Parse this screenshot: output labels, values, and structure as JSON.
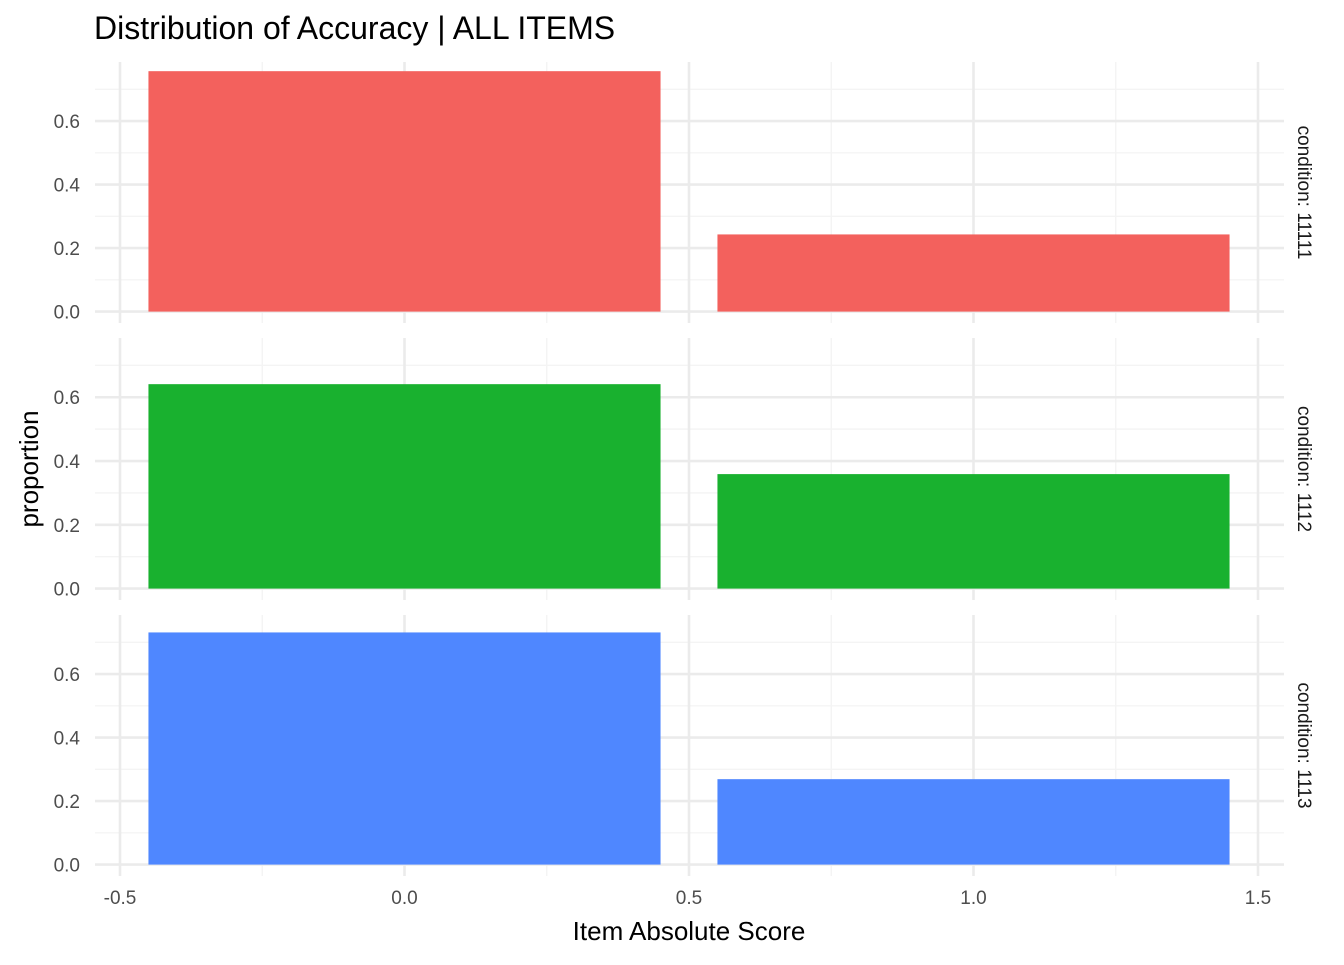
{
  "chart_data": {
    "type": "bar",
    "title": "Distribution of Accuracy  | ALL ITEMS",
    "xlabel": "Item Absolute Score",
    "ylabel": "proportion",
    "x": [
      0,
      1
    ],
    "bar_width": 0.9,
    "xlim": [
      -0.5,
      1.5
    ],
    "x_ticks": [
      {
        "value": -0.5,
        "label": "-0.5"
      },
      {
        "value": 0.0,
        "label": "0.0"
      },
      {
        "value": 0.5,
        "label": "0.5"
      },
      {
        "value": 1.0,
        "label": "1.0"
      },
      {
        "value": 1.5,
        "label": "1.5"
      }
    ],
    "ylim": [
      0,
      0.75
    ],
    "y_ticks": [
      {
        "value": 0.0,
        "label": "0.0"
      },
      {
        "value": 0.2,
        "label": "0.2"
      },
      {
        "value": 0.4,
        "label": "0.4"
      },
      {
        "value": 0.6,
        "label": "0.6"
      }
    ],
    "grid": true,
    "legend": "none",
    "facets": [
      {
        "strip": "condition: 11111",
        "color": "#F3615D",
        "values": [
          0.757,
          0.243
        ]
      },
      {
        "strip": "condition: 1112",
        "color": "#19B12F",
        "values": [
          0.641,
          0.359
        ]
      },
      {
        "strip": "condition: 1113",
        "color": "#4F87FF",
        "values": [
          0.731,
          0.269
        ]
      }
    ]
  },
  "colors": {
    "grid_major": "#EBEBEB",
    "grid_minor": "#F4F4F4"
  }
}
